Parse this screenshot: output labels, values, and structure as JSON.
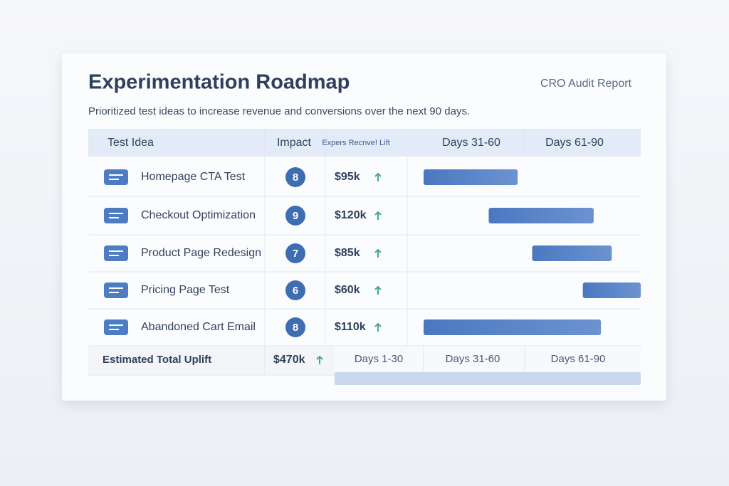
{
  "header": {
    "title": "Experimentation Roadmap",
    "badge": "CRO Audit Report",
    "description": "Prioritized test ideas to increase revenue and conversions over the next 90 days."
  },
  "table": {
    "columns": [
      "Test Idea",
      "Impact",
      "Expers Recnve! Lift",
      "Days 31-60",
      "Days 61-90"
    ],
    "timeline_xlim": [
      30,
      90
    ],
    "rows": [
      {
        "idea": "Homepage CTA Test",
        "impact": "8",
        "revenue": "$95k",
        "start": 30,
        "end": 56
      },
      {
        "idea": "Checkout Optimization",
        "impact": "9",
        "revenue": "$120k",
        "start": 48,
        "end": 77
      },
      {
        "idea": "Product Page Redesign",
        "impact": "7",
        "revenue": "$85k",
        "start": 60,
        "end": 82
      },
      {
        "idea": "Pricing Page Test",
        "impact": "6",
        "revenue": "$60k",
        "start": 74,
        "end": 90
      },
      {
        "idea": "Abandoned Cart Email",
        "impact": "8",
        "revenue": "$110k",
        "start": 30,
        "end": 79
      }
    ],
    "footer": {
      "label": "Estimated Total Uplift",
      "total": "$470k",
      "periods": [
        "Days 1-30",
        "Days 31-60",
        "Days 61-90"
      ]
    }
  }
}
